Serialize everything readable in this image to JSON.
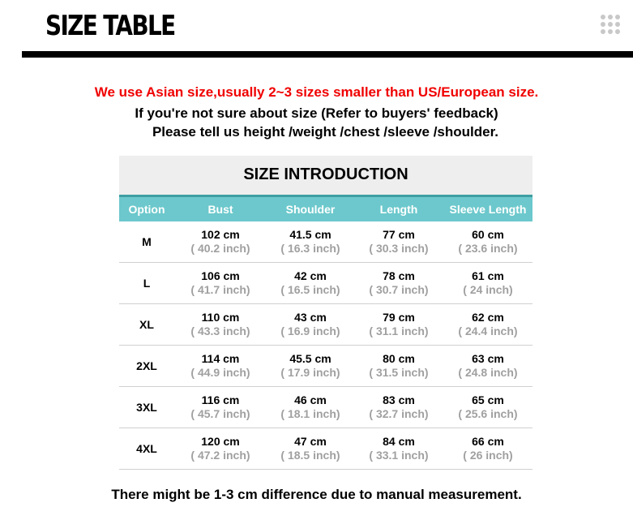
{
  "header": {
    "title": "SIZE TABLE",
    "menu_icon": "grid-dots-icon"
  },
  "notes": {
    "warning": "We use Asian size,usually 2~3 sizes smaller than US/European size.",
    "line2": "If you're not sure about size  (Refer to buyers' feedback)",
    "line3": "Please tell us height /weight /chest /sleeve /shoulder."
  },
  "colors": {
    "warning": "#f00000",
    "header_bg": "#6cc8cc",
    "title_bg": "#eeeeee"
  },
  "table": {
    "title": "SIZE INTRODUCTION",
    "columns": [
      "Option",
      "Bust",
      "Shoulder",
      "Length",
      "Sleeve Length"
    ],
    "rows": [
      {
        "option": "M",
        "values": [
          [
            "102 cm",
            "( 40.2 inch)"
          ],
          [
            "41.5 cm",
            "( 16.3 inch)"
          ],
          [
            "77 cm",
            "( 30.3 inch)"
          ],
          [
            "60 cm",
            "( 23.6 inch)"
          ]
        ]
      },
      {
        "option": "L",
        "values": [
          [
            "106 cm",
            "( 41.7 inch)"
          ],
          [
            "42 cm",
            "( 16.5 inch)"
          ],
          [
            "78 cm",
            "( 30.7 inch)"
          ],
          [
            "61 cm",
            "( 24 inch)"
          ]
        ]
      },
      {
        "option": "XL",
        "values": [
          [
            "110 cm",
            "( 43.3 inch)"
          ],
          [
            "43 cm",
            "( 16.9 inch)"
          ],
          [
            "79 cm",
            "( 31.1 inch)"
          ],
          [
            "62 cm",
            "( 24.4 inch)"
          ]
        ]
      },
      {
        "option": "2XL",
        "values": [
          [
            "114 cm",
            "( 44.9 inch)"
          ],
          [
            "45.5 cm",
            "( 17.9 inch)"
          ],
          [
            "80 cm",
            "( 31.5 inch)"
          ],
          [
            "63 cm",
            "( 24.8 inch)"
          ]
        ]
      },
      {
        "option": "3XL",
        "values": [
          [
            "116 cm",
            "( 45.7 inch)"
          ],
          [
            "46 cm",
            "( 18.1 inch)"
          ],
          [
            "83 cm",
            "( 32.7 inch)"
          ],
          [
            "65 cm",
            "( 25.6 inch)"
          ]
        ]
      },
      {
        "option": "4XL",
        "values": [
          [
            "120 cm",
            "( 47.2 inch)"
          ],
          [
            "47 cm",
            "( 18.5 inch)"
          ],
          [
            "84 cm",
            "( 33.1 inch)"
          ],
          [
            "66 cm",
            "( 26 inch)"
          ]
        ]
      }
    ]
  },
  "footer": "There might be 1-3 cm difference due to manual measurement."
}
